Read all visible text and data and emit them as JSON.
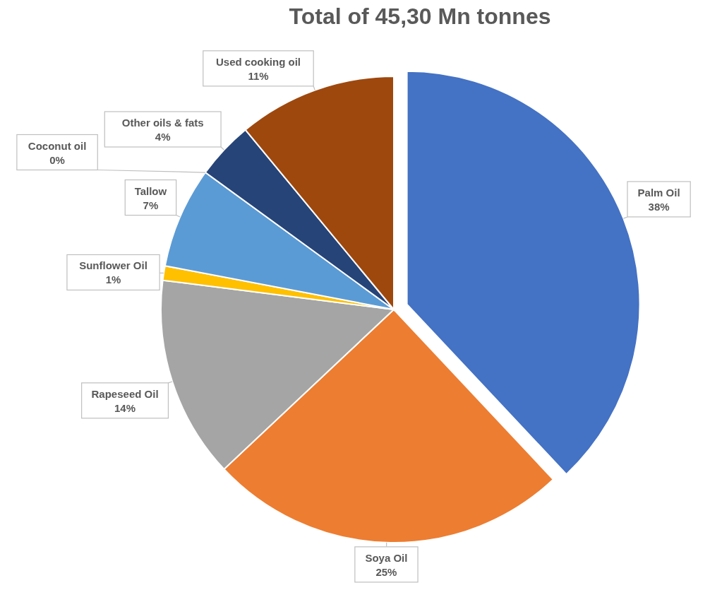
{
  "chart_data": {
    "type": "pie",
    "title": "Total of 45,30 Mn tonnes",
    "categories": [
      "Palm Oil",
      "Soya Oil",
      "Rapeseed Oil",
      "Sunflower Oil",
      "Tallow",
      "Coconut oil",
      "Other oils & fats",
      "Used cooking oil"
    ],
    "values": [
      38,
      25,
      14,
      1,
      7,
      0,
      4,
      11
    ],
    "colors": [
      "#4472c4",
      "#ed7d31",
      "#a5a5a5",
      "#ffc000",
      "#5b9bd5",
      "#70ad47",
      "#264478",
      "#9e480e"
    ],
    "value_labels": [
      "38%",
      "25%",
      "14%",
      "1%",
      "7%",
      "0%",
      "4%",
      "11%"
    ]
  }
}
